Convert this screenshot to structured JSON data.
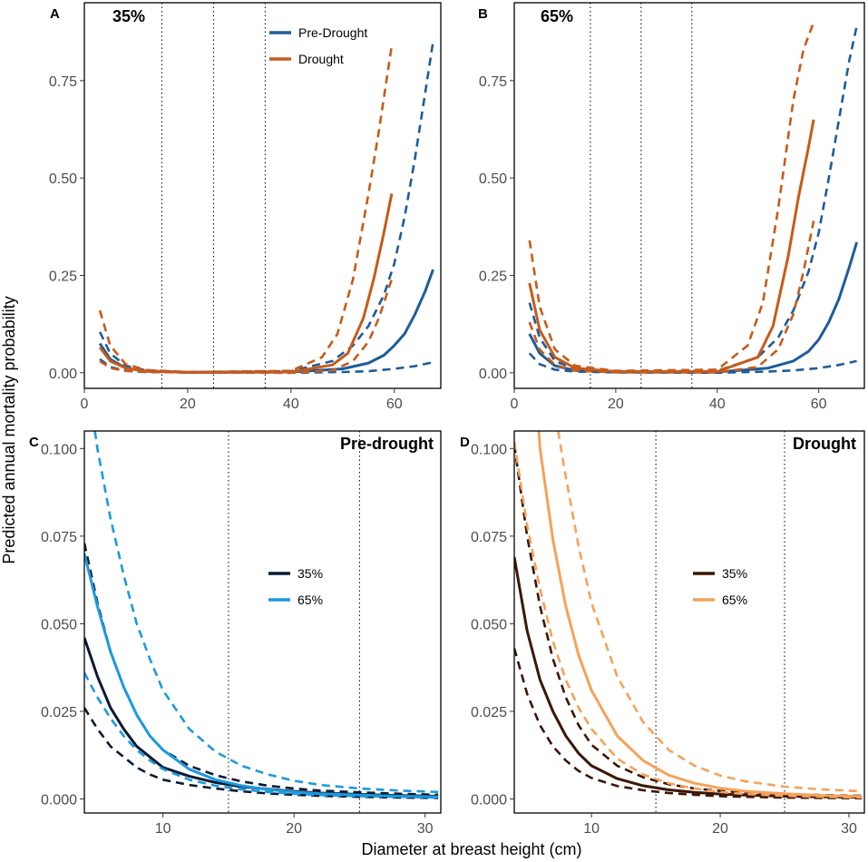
{
  "xlabel": "Diameter at breast height (cm)",
  "ylabel": "Predicted annual mortality probability",
  "chart_data": [
    {
      "type": "line",
      "letter": "A",
      "tag": "35%",
      "xlim": [
        0,
        69
      ],
      "ylim": [
        -0.04,
        0.95
      ],
      "xticks": [
        "0",
        "20",
        "40",
        "60"
      ],
      "xtick_values": [
        0,
        20,
        40,
        60
      ],
      "yticks": [
        "0.00",
        "0.25",
        "0.50",
        "0.75"
      ],
      "ytick_values": [
        0,
        0.25,
        0.5,
        0.75
      ],
      "vlines": [
        15,
        25,
        35
      ],
      "legend": [
        {
          "label": "Pre-Drought",
          "color": "#1f5c99"
        },
        {
          "label": "Drought",
          "color": "#c85a1a"
        }
      ],
      "series": [
        {
          "name": "Pre-Drought",
          "style": "solid",
          "color": "#1f5c99",
          "x": [
            3,
            5,
            8,
            12,
            20,
            40,
            50,
            55,
            58,
            60,
            62,
            64,
            66,
            67.5
          ],
          "y": [
            0.075,
            0.035,
            0.012,
            0.004,
            0.001,
            0.002,
            0.01,
            0.025,
            0.045,
            0.07,
            0.1,
            0.15,
            0.21,
            0.265
          ]
        },
        {
          "name": "Pre-Drought upper",
          "style": "dashed",
          "color": "#1f5c99",
          "x": [
            3,
            5,
            8,
            12,
            20,
            40,
            48,
            52,
            55,
            58,
            60,
            62,
            64,
            66,
            67.5
          ],
          "y": [
            0.105,
            0.05,
            0.018,
            0.006,
            0.002,
            0.004,
            0.03,
            0.07,
            0.12,
            0.2,
            0.28,
            0.4,
            0.55,
            0.72,
            0.85
          ]
        },
        {
          "name": "Pre-Drought lower",
          "style": "dashed",
          "color": "#1f5c99",
          "x": [
            3,
            5,
            8,
            12,
            20,
            40,
            50,
            55,
            60,
            64,
            67.5
          ],
          "y": [
            0.035,
            0.015,
            0.005,
            0.002,
            0.001,
            0.0,
            0.002,
            0.004,
            0.01,
            0.017,
            0.027
          ]
        },
        {
          "name": "Drought",
          "style": "solid",
          "color": "#c85a1a",
          "x": [
            3,
            5,
            8,
            12,
            20,
            40,
            48,
            51,
            54,
            56,
            58,
            59.5
          ],
          "y": [
            0.065,
            0.03,
            0.012,
            0.004,
            0.001,
            0.002,
            0.02,
            0.05,
            0.14,
            0.24,
            0.36,
            0.46
          ]
        },
        {
          "name": "Drought upper",
          "style": "dashed",
          "color": "#c85a1a",
          "x": [
            3,
            5,
            8,
            12,
            20,
            40,
            46,
            49,
            52,
            55,
            57,
            59.5
          ],
          "y": [
            0.16,
            0.07,
            0.022,
            0.007,
            0.002,
            0.005,
            0.04,
            0.1,
            0.24,
            0.46,
            0.62,
            0.84
          ]
        },
        {
          "name": "Drought lower",
          "style": "dashed",
          "color": "#c85a1a",
          "x": [
            3,
            5,
            8,
            12,
            20,
            40,
            48,
            52,
            55,
            57,
            59.5
          ],
          "y": [
            0.03,
            0.012,
            0.005,
            0.002,
            0.001,
            0.0,
            0.006,
            0.03,
            0.08,
            0.14,
            0.24
          ]
        }
      ]
    },
    {
      "type": "line",
      "letter": "B",
      "tag": "65%",
      "xlim": [
        0,
        69
      ],
      "ylim": [
        -0.04,
        0.95
      ],
      "xticks": [
        "0",
        "20",
        "40",
        "60"
      ],
      "xtick_values": [
        0,
        20,
        40,
        60
      ],
      "yticks": [
        "0.00",
        "0.25",
        "0.50",
        "0.75"
      ],
      "ytick_values": [
        0,
        0.25,
        0.5,
        0.75
      ],
      "vlines": [
        15,
        25,
        35
      ],
      "legend": [],
      "series": [
        {
          "name": "Pre-Drought",
          "style": "solid",
          "color": "#1f5c99",
          "x": [
            3,
            5,
            8,
            12,
            20,
            40,
            50,
            55,
            58,
            60,
            62,
            64,
            66,
            67.5
          ],
          "y": [
            0.1,
            0.05,
            0.018,
            0.006,
            0.002,
            0.002,
            0.012,
            0.03,
            0.055,
            0.085,
            0.13,
            0.19,
            0.27,
            0.335
          ]
        },
        {
          "name": "Pre-Drought upper",
          "style": "dashed",
          "color": "#1f5c99",
          "x": [
            3,
            5,
            8,
            12,
            20,
            40,
            48,
            52,
            55,
            58,
            60,
            62,
            64,
            66,
            67.5
          ],
          "y": [
            0.18,
            0.09,
            0.03,
            0.01,
            0.003,
            0.005,
            0.04,
            0.09,
            0.16,
            0.26,
            0.36,
            0.5,
            0.65,
            0.8,
            0.89
          ]
        },
        {
          "name": "Pre-Drought lower",
          "style": "dashed",
          "color": "#1f5c99",
          "x": [
            3,
            5,
            8,
            12,
            20,
            40,
            50,
            55,
            60,
            64,
            67.5
          ],
          "y": [
            0.05,
            0.022,
            0.008,
            0.003,
            0.001,
            0.0,
            0.003,
            0.006,
            0.012,
            0.02,
            0.03
          ]
        },
        {
          "name": "Drought",
          "style": "solid",
          "color": "#c85a1a",
          "x": [
            3,
            5,
            8,
            12,
            20,
            40,
            48,
            51,
            54,
            56,
            58,
            59
          ],
          "y": [
            0.23,
            0.11,
            0.04,
            0.012,
            0.003,
            0.003,
            0.04,
            0.12,
            0.3,
            0.45,
            0.58,
            0.65
          ]
        },
        {
          "name": "Drought upper",
          "style": "dashed",
          "color": "#c85a1a",
          "x": [
            3,
            5,
            8,
            12,
            20,
            40,
            46,
            49,
            52,
            55,
            57,
            59
          ],
          "y": [
            0.34,
            0.17,
            0.06,
            0.018,
            0.005,
            0.008,
            0.07,
            0.18,
            0.42,
            0.7,
            0.83,
            0.9
          ]
        },
        {
          "name": "Drought lower",
          "style": "dashed",
          "color": "#c85a1a",
          "x": [
            3,
            5,
            8,
            12,
            20,
            40,
            48,
            52,
            55,
            57,
            59
          ],
          "y": [
            0.13,
            0.06,
            0.02,
            0.006,
            0.001,
            0.001,
            0.015,
            0.06,
            0.15,
            0.26,
            0.39
          ]
        }
      ]
    },
    {
      "type": "line",
      "letter": "C",
      "tag": "Pre-drought",
      "xlim": [
        4,
        31.2
      ],
      "ylim": [
        -0.004,
        0.105
      ],
      "xticks": [
        "10",
        "20",
        "30"
      ],
      "xtick_values": [
        10,
        20,
        30
      ],
      "yticks": [
        "0.000",
        "0.025",
        "0.050",
        "0.075",
        "0.100"
      ],
      "ytick_values": [
        0,
        0.025,
        0.05,
        0.075,
        0.1
      ],
      "vlines": [
        15,
        25
      ],
      "legend": [
        {
          "label": "35%",
          "color": "#0b1a33"
        },
        {
          "label": "65%",
          "color": "#1b9ae0"
        }
      ],
      "series": [
        {
          "name": "35%",
          "style": "solid",
          "color": "#0b1a33",
          "x": [
            4,
            5,
            6,
            7,
            8,
            9,
            10,
            12,
            14,
            16,
            18,
            20,
            22,
            25,
            28,
            31
          ],
          "y": [
            0.046,
            0.035,
            0.026,
            0.02,
            0.015,
            0.012,
            0.009,
            0.0065,
            0.0047,
            0.0035,
            0.0028,
            0.0022,
            0.0017,
            0.0013,
            0.001,
            0.0008
          ]
        },
        {
          "name": "35% upper",
          "style": "dashed",
          "color": "#0b1a33",
          "x": [
            4,
            5,
            6,
            7,
            8,
            9,
            10,
            12,
            14,
            16,
            18,
            20,
            22,
            25,
            28,
            31
          ],
          "y": [
            0.073,
            0.056,
            0.042,
            0.032,
            0.024,
            0.018,
            0.014,
            0.0095,
            0.0068,
            0.005,
            0.0038,
            0.003,
            0.0024,
            0.0019,
            0.0015,
            0.0012
          ]
        },
        {
          "name": "35% lower",
          "style": "dashed",
          "color": "#0b1a33",
          "x": [
            4,
            5,
            6,
            7,
            8,
            9,
            10,
            12,
            14,
            16,
            18,
            20,
            22,
            25,
            28,
            31
          ],
          "y": [
            0.026,
            0.02,
            0.015,
            0.012,
            0.009,
            0.007,
            0.0055,
            0.004,
            0.003,
            0.0022,
            0.0016,
            0.0012,
            0.0009,
            0.0006,
            0.0004,
            0.0003
          ]
        },
        {
          "name": "65%",
          "style": "solid",
          "color": "#1b9ae0",
          "x": [
            4,
            5,
            6,
            7,
            8,
            9,
            10,
            12,
            14,
            16,
            18,
            20,
            22,
            25,
            28,
            31
          ],
          "y": [
            0.07,
            0.055,
            0.042,
            0.032,
            0.024,
            0.018,
            0.014,
            0.0085,
            0.0055,
            0.0038,
            0.0027,
            0.002,
            0.0015,
            0.0011,
            0.0008,
            0.0006
          ]
        },
        {
          "name": "65% upper",
          "style": "dashed",
          "color": "#1b9ae0",
          "x": [
            4.8,
            5,
            6,
            7,
            8,
            9,
            10,
            12,
            14,
            16,
            18,
            20,
            22,
            25,
            28,
            31
          ],
          "y": [
            0.105,
            0.1,
            0.08,
            0.064,
            0.05,
            0.04,
            0.031,
            0.02,
            0.0135,
            0.0095,
            0.007,
            0.0052,
            0.004,
            0.003,
            0.0024,
            0.002
          ]
        },
        {
          "name": "65% lower",
          "style": "dashed",
          "color": "#1b9ae0",
          "x": [
            4,
            5,
            6,
            7,
            8,
            9,
            10,
            12,
            14,
            16,
            18,
            20,
            22,
            25,
            28,
            31
          ],
          "y": [
            0.036,
            0.029,
            0.023,
            0.018,
            0.014,
            0.011,
            0.0085,
            0.0055,
            0.0038,
            0.0027,
            0.002,
            0.0015,
            0.0011,
            0.0008,
            0.0006,
            0.0004
          ]
        }
      ]
    },
    {
      "type": "line",
      "letter": "D",
      "tag": "Drought",
      "xlim": [
        4,
        31.2
      ],
      "ylim": [
        -0.004,
        0.105
      ],
      "xticks": [
        "10",
        "20",
        "30"
      ],
      "xtick_values": [
        10,
        20,
        30
      ],
      "yticks": [
        "0.000",
        "0.025",
        "0.050",
        "0.075",
        "0.100"
      ],
      "ytick_values": [
        0,
        0.025,
        0.05,
        0.075,
        0.1
      ],
      "vlines": [
        15,
        25
      ],
      "legend": [
        {
          "label": "35%",
          "color": "#3d1605"
        },
        {
          "label": "65%",
          "color": "#f5a25a"
        }
      ],
      "series": [
        {
          "name": "35%",
          "style": "solid",
          "color": "#3d1605",
          "x": [
            4,
            5,
            6,
            7,
            8,
            9,
            10,
            12,
            14,
            16,
            18,
            20,
            22,
            25,
            28,
            31
          ],
          "y": [
            0.069,
            0.048,
            0.034,
            0.025,
            0.018,
            0.013,
            0.0095,
            0.0058,
            0.0038,
            0.0026,
            0.0019,
            0.0014,
            0.0011,
            0.0008,
            0.0006,
            0.0005
          ]
        },
        {
          "name": "35% upper",
          "style": "dashed",
          "color": "#3d1605",
          "x": [
            4,
            5,
            6,
            7,
            8,
            9,
            10,
            12,
            14,
            16,
            18,
            20,
            22,
            25,
            28,
            31
          ],
          "y": [
            0.101,
            0.075,
            0.055,
            0.04,
            0.029,
            0.021,
            0.0155,
            0.0095,
            0.0062,
            0.0042,
            0.003,
            0.0023,
            0.0018,
            0.0014,
            0.0011,
            0.0009
          ]
        },
        {
          "name": "35% lower",
          "style": "dashed",
          "color": "#3d1605",
          "x": [
            4,
            5,
            6,
            7,
            8,
            9,
            10,
            12,
            14,
            16,
            18,
            20,
            22,
            25,
            28,
            31
          ],
          "y": [
            0.043,
            0.03,
            0.021,
            0.015,
            0.011,
            0.008,
            0.006,
            0.0037,
            0.0025,
            0.0017,
            0.0012,
            0.0008,
            0.0006,
            0.0004,
            0.0003,
            0.0002
          ]
        },
        {
          "name": "65%",
          "style": "solid",
          "color": "#f5a25a",
          "x": [
            5.9,
            6,
            7,
            8,
            9,
            10,
            12,
            14,
            16,
            18,
            20,
            22,
            25,
            28,
            31
          ],
          "y": [
            0.105,
            0.1,
            0.074,
            0.055,
            0.041,
            0.031,
            0.018,
            0.011,
            0.0068,
            0.0045,
            0.0031,
            0.0022,
            0.0015,
            0.001,
            0.0007
          ]
        },
        {
          "name": "65% upper",
          "style": "dashed",
          "color": "#f5a25a",
          "x": [
            7.4,
            8,
            9,
            10,
            12,
            14,
            16,
            18,
            20,
            22,
            25,
            28,
            31
          ],
          "y": [
            0.105,
            0.092,
            0.072,
            0.056,
            0.035,
            0.022,
            0.014,
            0.0095,
            0.0067,
            0.005,
            0.0035,
            0.0027,
            0.0022
          ]
        },
        {
          "name": "65% lower",
          "style": "dashed",
          "color": "#f5a25a",
          "x": [
            4,
            5,
            6,
            7,
            8,
            9,
            10,
            12,
            14,
            16,
            18,
            20,
            22,
            25,
            28,
            31
          ],
          "y": [
            0.102,
            0.078,
            0.06,
            0.045,
            0.034,
            0.026,
            0.02,
            0.0115,
            0.007,
            0.0045,
            0.003,
            0.002,
            0.0014,
            0.0009,
            0.0006,
            0.0004
          ]
        }
      ]
    }
  ]
}
